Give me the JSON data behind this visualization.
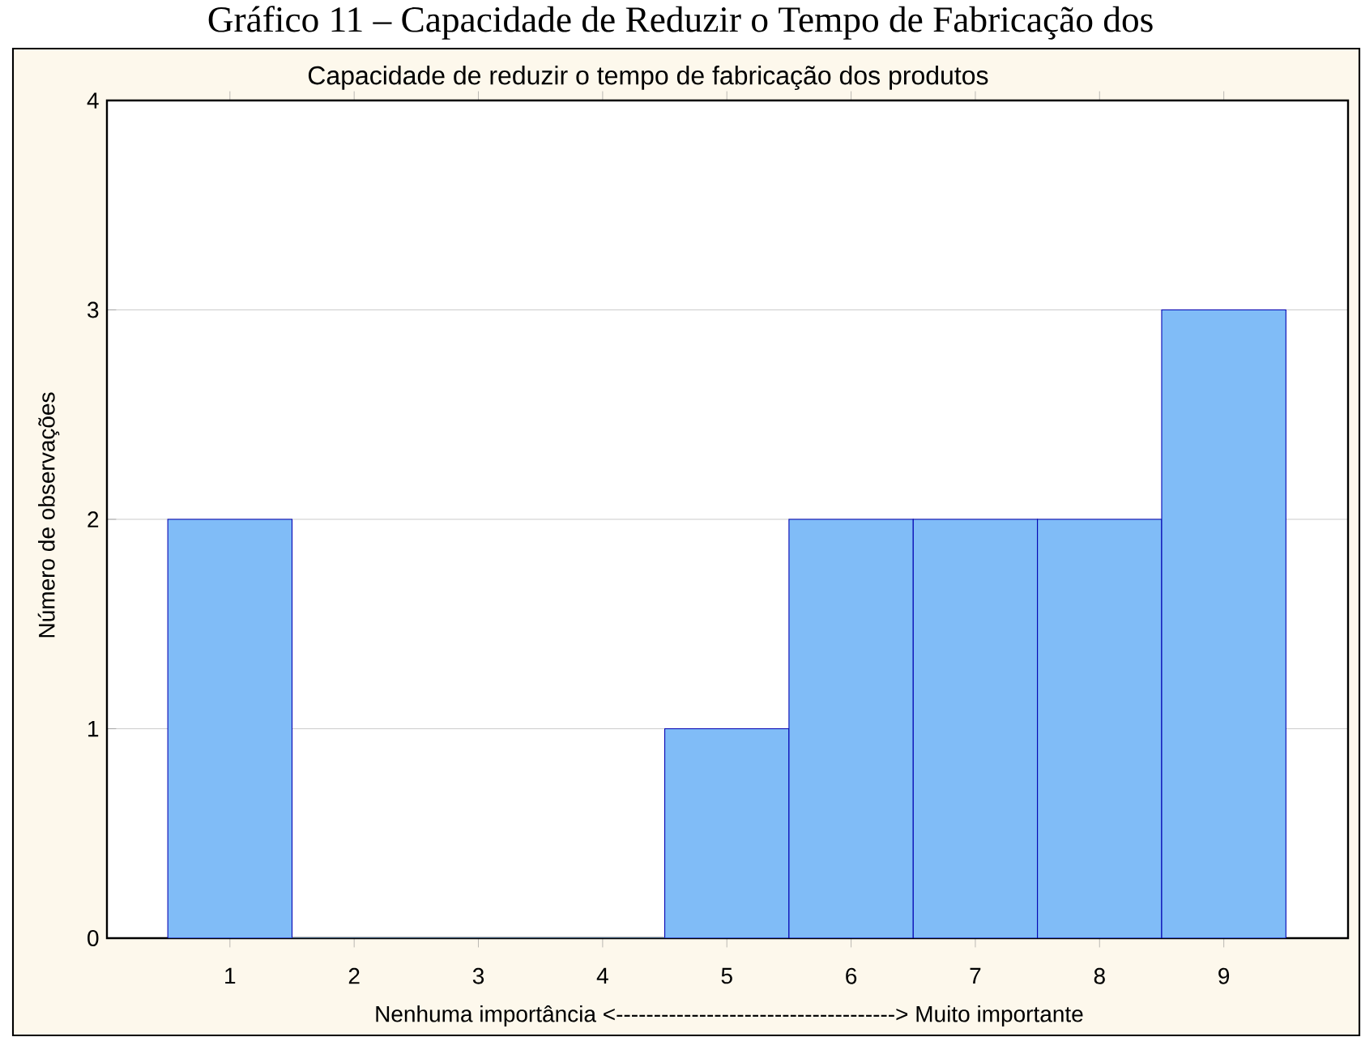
{
  "chart_data": {
    "type": "bar",
    "title": "Capacidade de reduzir o tempo de fabricação dos produtos",
    "annotations": [
      "Gráfico 11 – Capacidade de Reduzir o Tempo de Fabricação dos"
    ],
    "xlabel": "Nenhuma importância <-------------------------------------> Muito importante",
    "ylabel": "Número de observações",
    "categories": [
      "1",
      "2",
      "3",
      "4",
      "5",
      "6",
      "7",
      "8",
      "9"
    ],
    "values": [
      2,
      0,
      0,
      0,
      1,
      2,
      2,
      2,
      3
    ],
    "color": "#80bcf7",
    "ylim": [
      0,
      4
    ],
    "yticks": [
      0,
      1,
      2,
      3,
      4
    ],
    "grid": "y"
  }
}
